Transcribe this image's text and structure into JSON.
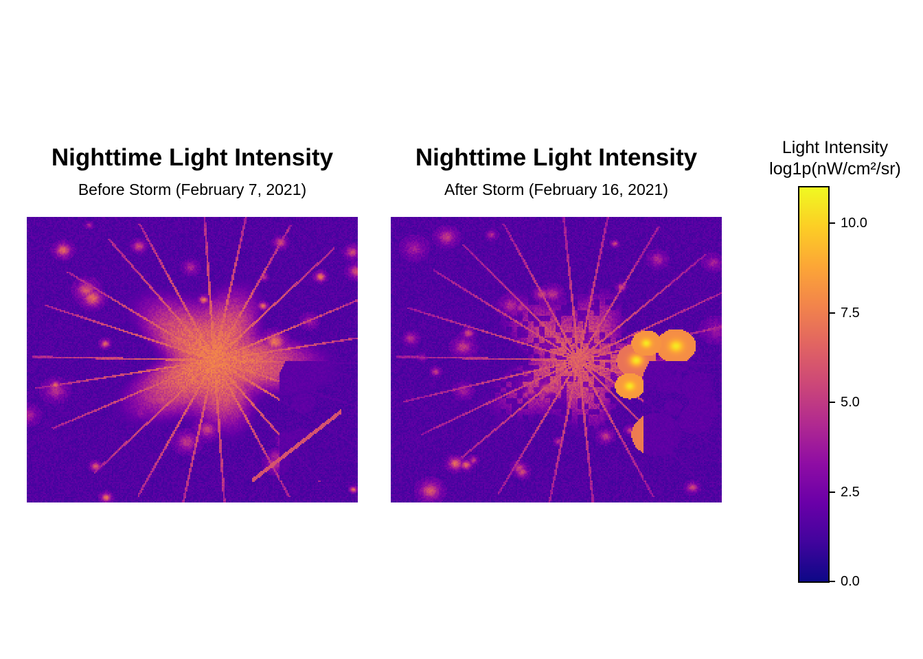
{
  "panels": [
    {
      "title": "Nighttime Light Intensity",
      "subtitle": "Before Storm (February 7, 2021)",
      "scenario": "before",
      "max_urban_value": 9.2
    },
    {
      "title": "Nighttime Light Intensity",
      "subtitle": "After Storm (February 16, 2021)",
      "scenario": "after",
      "max_urban_value": 10.6
    }
  ],
  "legend": {
    "title_line1": "Light Intensity",
    "title_line2": "log1p(nW/cm²/sr)",
    "range": [
      0,
      11
    ],
    "ticks": [
      {
        "value": 0.0,
        "label": "0.0"
      },
      {
        "value": 2.5,
        "label": "2.5"
      },
      {
        "value": 5.0,
        "label": "5.0"
      },
      {
        "value": 7.5,
        "label": "7.5"
      },
      {
        "value": 10.0,
        "label": "10.0"
      }
    ],
    "colormap": "plasma",
    "colormap_stops": [
      "#0d0887",
      "#41049d",
      "#6a00a8",
      "#8f0da4",
      "#b12a90",
      "#cc4778",
      "#e16462",
      "#f2844b",
      "#fca636",
      "#fcce25",
      "#f0f921"
    ]
  }
}
